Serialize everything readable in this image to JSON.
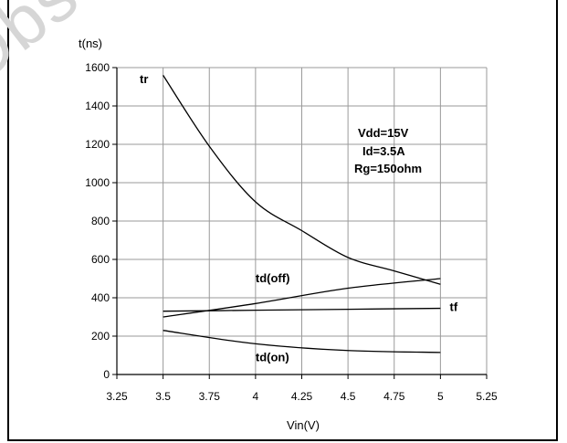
{
  "watermark": "Obsolete",
  "chart_data": {
    "type": "line",
    "ylabel": "t(ns)",
    "xlabel": "Vin(V)",
    "xlim": [
      3.25,
      5.25
    ],
    "ylim": [
      0,
      1600
    ],
    "x_ticks": [
      "3.25",
      "3.5",
      "3.75",
      "4",
      "4.25",
      "4.5",
      "4.75",
      "5",
      "5.25"
    ],
    "y_ticks": [
      "0",
      "200",
      "400",
      "600",
      "800",
      "1000",
      "1200",
      "1400",
      "1600"
    ],
    "grid": true,
    "annotation": [
      "Vdd=15V",
      "Id=3.5A",
      "Rg=150ohm"
    ],
    "series": [
      {
        "name": "tr",
        "x": [
          3.5,
          3.75,
          4,
          4.25,
          4.5,
          4.75,
          5
        ],
        "values": [
          1560,
          1190,
          900,
          750,
          610,
          540,
          470
        ]
      },
      {
        "name": "td(off)",
        "x": [
          3.5,
          4,
          4.5,
          5
        ],
        "values": [
          300,
          370,
          450,
          500
        ]
      },
      {
        "name": "tf",
        "x": [
          3.5,
          4,
          4.5,
          5
        ],
        "values": [
          330,
          335,
          340,
          345
        ]
      },
      {
        "name": "td(on)",
        "x": [
          3.5,
          4,
          4.5,
          5
        ],
        "values": [
          230,
          160,
          125,
          115
        ]
      }
    ]
  }
}
